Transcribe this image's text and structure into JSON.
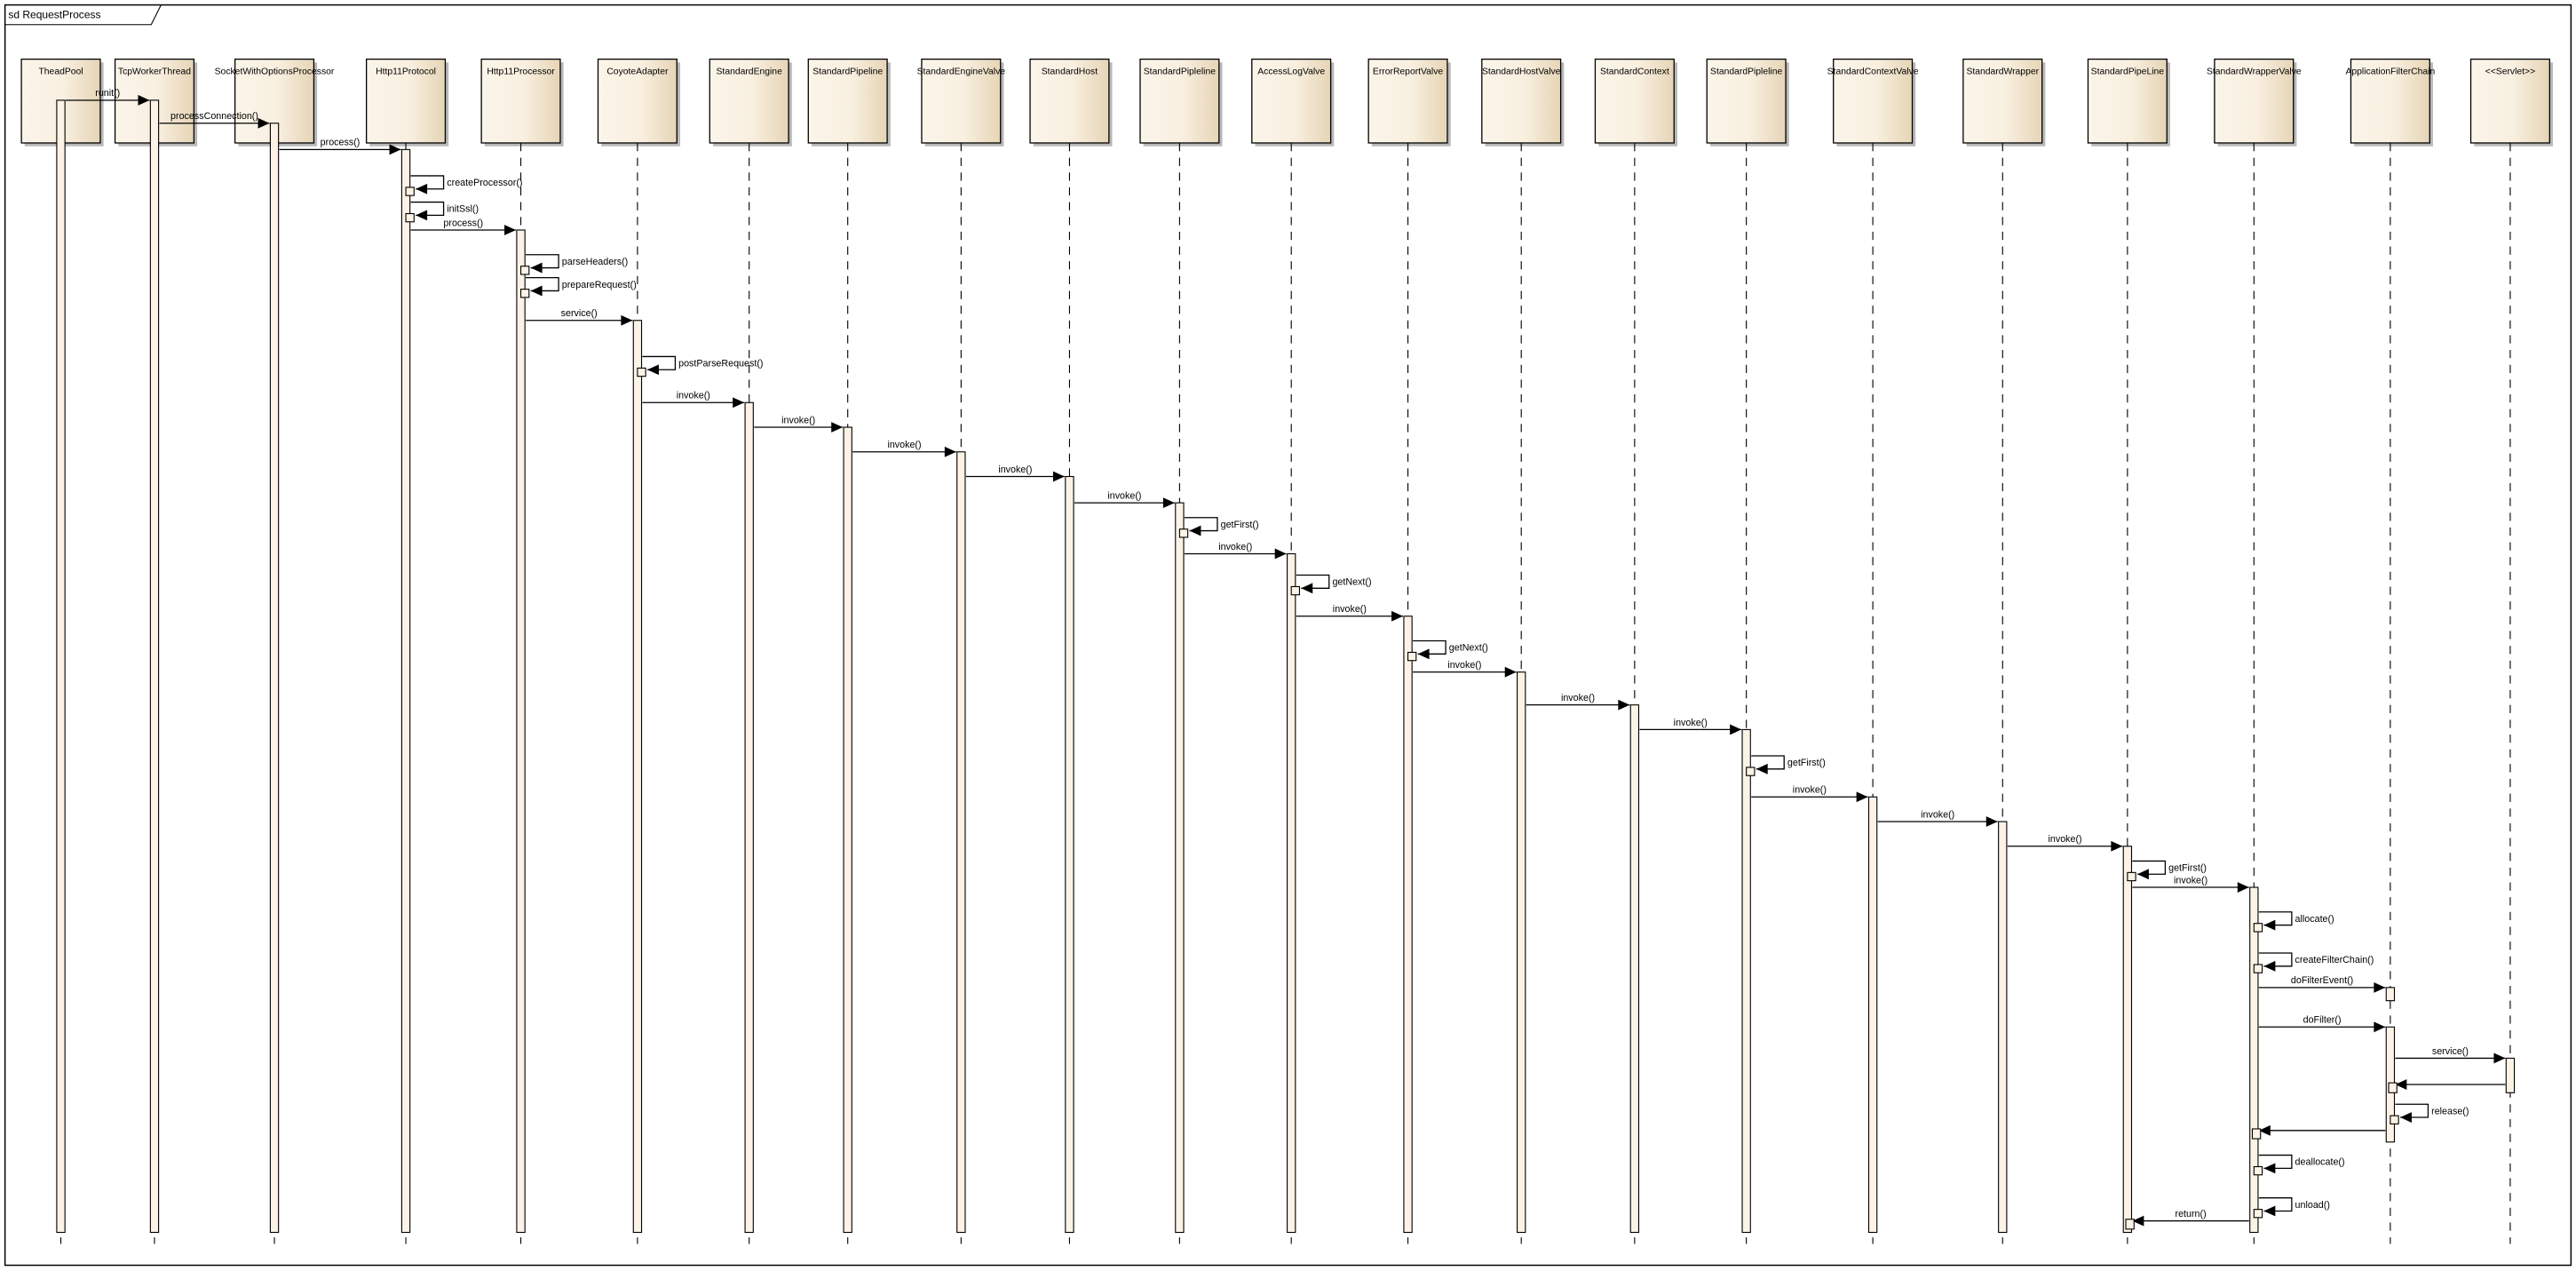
{
  "frame": {
    "title": "sd RequestProcess"
  },
  "colors": {
    "box_light": "#fbf5ea",
    "box_dark": "#e6d4b6",
    "activation": "#fcf3e6",
    "shadow": "#b8b8b8",
    "line": "#000000"
  },
  "participants": [
    "TheadPool",
    "TcpWorkerThread",
    "SocketWithOptionsProcessor",
    "Http11Protocol",
    "Http11Processor",
    "CoyoteAdapter",
    "StandardEngine",
    "StandardPipeline",
    "StandardEngineValve",
    "StandardHost",
    "StandardPipleline",
    "AccessLogValve",
    "ErrorReportValve",
    "StandardHostValve",
    "StandardContext",
    "StandardPipleline",
    "StandardContextValve",
    "StandardWrapper",
    "StandardPipeLine",
    "StandardWrapperValve",
    "ApplicationFilterChain",
    "<<Servlet>>"
  ],
  "messages": [
    {
      "from": 0,
      "to": 1,
      "label": "runit()"
    },
    {
      "from": 1,
      "to": 2,
      "label": "processConnection()"
    },
    {
      "from": 2,
      "to": 3,
      "label": "process()"
    },
    {
      "from": 3,
      "to": 3,
      "label": "createProcessor()"
    },
    {
      "from": 3,
      "to": 3,
      "label": "initSsl()"
    },
    {
      "from": 3,
      "to": 4,
      "label": "process()"
    },
    {
      "from": 4,
      "to": 4,
      "label": "parseHeaders()"
    },
    {
      "from": 4,
      "to": 4,
      "label": "prepareRequest()"
    },
    {
      "from": 4,
      "to": 5,
      "label": "service()"
    },
    {
      "from": 5,
      "to": 5,
      "label": "postParseRequest()"
    },
    {
      "from": 5,
      "to": 6,
      "label": "invoke()"
    },
    {
      "from": 6,
      "to": 7,
      "label": "invoke()"
    },
    {
      "from": 7,
      "to": 8,
      "label": "invoke()"
    },
    {
      "from": 8,
      "to": 9,
      "label": "invoke()"
    },
    {
      "from": 9,
      "to": 10,
      "label": "invoke()"
    },
    {
      "from": 10,
      "to": 10,
      "label": "getFirst()"
    },
    {
      "from": 10,
      "to": 11,
      "label": "invoke()"
    },
    {
      "from": 11,
      "to": 11,
      "label": "getNext()"
    },
    {
      "from": 11,
      "to": 12,
      "label": "invoke()"
    },
    {
      "from": 12,
      "to": 12,
      "label": "getNext()"
    },
    {
      "from": 12,
      "to": 13,
      "label": "invoke()"
    },
    {
      "from": 13,
      "to": 14,
      "label": "invoke()"
    },
    {
      "from": 14,
      "to": 15,
      "label": "invoke()"
    },
    {
      "from": 15,
      "to": 15,
      "label": "getFirst()"
    },
    {
      "from": 15,
      "to": 16,
      "label": "invoke()"
    },
    {
      "from": 16,
      "to": 17,
      "label": "invoke()"
    },
    {
      "from": 17,
      "to": 18,
      "label": "invoke()"
    },
    {
      "from": 18,
      "to": 18,
      "label": "getFirst()"
    },
    {
      "from": 18,
      "to": 19,
      "label": "invoke()"
    },
    {
      "from": 19,
      "to": 19,
      "label": "allocate()"
    },
    {
      "from": 19,
      "to": 19,
      "label": "createFilterChain()"
    },
    {
      "from": 19,
      "to": 20,
      "label": "doFilterEvent()"
    },
    {
      "from": 19,
      "to": 20,
      "label": "doFilter()"
    },
    {
      "from": 20,
      "to": 21,
      "label": "service()"
    },
    {
      "from": 21,
      "to": 20,
      "label": ""
    },
    {
      "from": 20,
      "to": 20,
      "label": "release()"
    },
    {
      "from": 20,
      "to": 19,
      "label": ""
    },
    {
      "from": 19,
      "to": 19,
      "label": "deallocate()"
    },
    {
      "from": 19,
      "to": 19,
      "label": "unload()"
    },
    {
      "from": 19,
      "to": 18,
      "label": "return()"
    }
  ]
}
